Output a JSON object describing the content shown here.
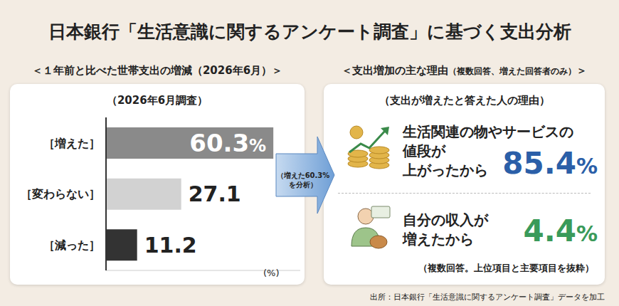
{
  "title": "日本銀行「生活意識に関するアンケート調査」に基づく支出分析",
  "source": "出所：日本銀行「生活意識に関するアンケート調査」データを加工",
  "arrow_label": [
    "（増えた60.3%",
    "を分析）"
  ],
  "chart_data": {
    "type": "bar",
    "orientation": "horizontal",
    "title": "＜１年前と比べた世帯支出の増減（2026年6月）＞",
    "subtitle": "（2026年6月調査）",
    "x_label": "(%)",
    "categories": [
      "［増えた］",
      "［変わらない］",
      "［減った］"
    ],
    "values": [
      60.3,
      27.1,
      11.2
    ],
    "value_labels": [
      "60.3%",
      "27.1",
      "11.2"
    ],
    "colors": [
      "#8a8a8a",
      "#d2d2d2",
      "#333333"
    ],
    "xlim": [
      0,
      70
    ],
    "tick_labels": "y",
    "data_labels": true,
    "grid": false
  },
  "reasons": {
    "title": "＜支出増加の主な理由",
    "title_note": "（複数回答、増えた回答者のみ）",
    "title_end": "＞",
    "subtitle": "（支出が増えたと答えた人の理由）",
    "items": [
      {
        "label": [
          "生活関連の物やサービスの",
          "値段が",
          "上がったから"
        ],
        "value": 85.4,
        "unit": "%",
        "color": "#2b5fa8"
      },
      {
        "label": [
          "自分の収入が",
          "増えたから"
        ],
        "value": 4.4,
        "unit": "%",
        "color": "#3a9a5a"
      }
    ],
    "note": "（複数回答。上位項目と主要項目を抜粋）"
  }
}
